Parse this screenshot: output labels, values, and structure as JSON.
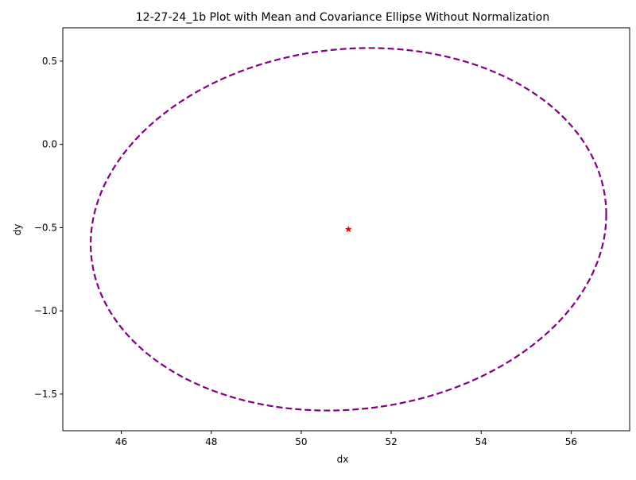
{
  "chart_data": {
    "type": "scatter",
    "title": "12-27-24_1b Plot with Mean and Covariance Ellipse Without Normalization",
    "xlabel": "dx",
    "ylabel": "dy",
    "xlim": [
      44.7,
      57.3
    ],
    "ylim": [
      -1.72,
      0.7
    ],
    "xticks": [
      46,
      48,
      50,
      52,
      54,
      56
    ],
    "xtick_labels": [
      "46",
      "48",
      "50",
      "52",
      "54",
      "56"
    ],
    "yticks": [
      -1.5,
      -1.0,
      -0.5,
      0.0,
      0.5
    ],
    "ytick_labels": [
      "−1.5",
      "−1.0",
      "−0.5",
      "0.0",
      "0.5"
    ],
    "grid": false,
    "mean": {
      "x": 51.05,
      "y": -0.51,
      "marker": "star",
      "color": "#ff0000"
    },
    "ellipse": {
      "center": [
        51.05,
        -0.51
      ],
      "semi_axis_x": 5.73,
      "semi_axis_y": 1.085,
      "tilt_dy_per_dx": 0.0154,
      "line_style": "dashed",
      "color": "#800080"
    }
  }
}
